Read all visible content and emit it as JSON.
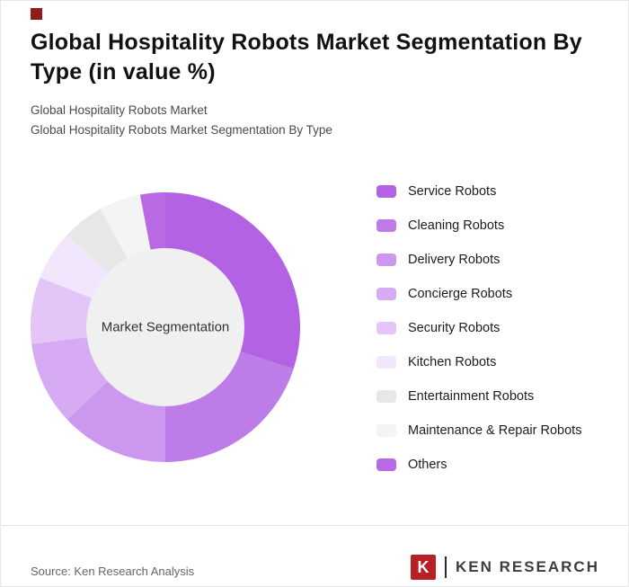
{
  "page": {
    "title": "Global Hospitality Robots Market Segmentation By Type (in value %)",
    "subtitle1": "Global Hospitality Robots Market",
    "subtitle2": "Global Hospitality Robots Market Segmentation By Type"
  },
  "chart_data": {
    "type": "pie",
    "style": "donut",
    "title": "Global Hospitality Robots Market Segmentation By Type (in value %)",
    "center_label": "Market Segmentation",
    "legend_position": "right",
    "unit": "value %",
    "categories": [
      "Service Robots",
      "Cleaning Robots",
      "Delivery Robots",
      "Concierge Robots",
      "Security Robots",
      "Kitchen Robots",
      "Entertainment Robots",
      "Maintenance & Repair Robots",
      "Others"
    ],
    "values": [
      30,
      20,
      13,
      10,
      8,
      6,
      5,
      5,
      3
    ],
    "colors": [
      "#b262e2",
      "#be7ce9",
      "#cb97ef",
      "#d6abf3",
      "#e3c6f7",
      "#f1e6fb",
      "#e7e7e7",
      "#f4f4f4",
      "#b86ae4"
    ],
    "center_fill": "#f0f0f0"
  },
  "footer": {
    "source": "Source: Ken Research Analysis",
    "logo": {
      "letter": "K",
      "name": "KEN RESEARCH"
    }
  }
}
